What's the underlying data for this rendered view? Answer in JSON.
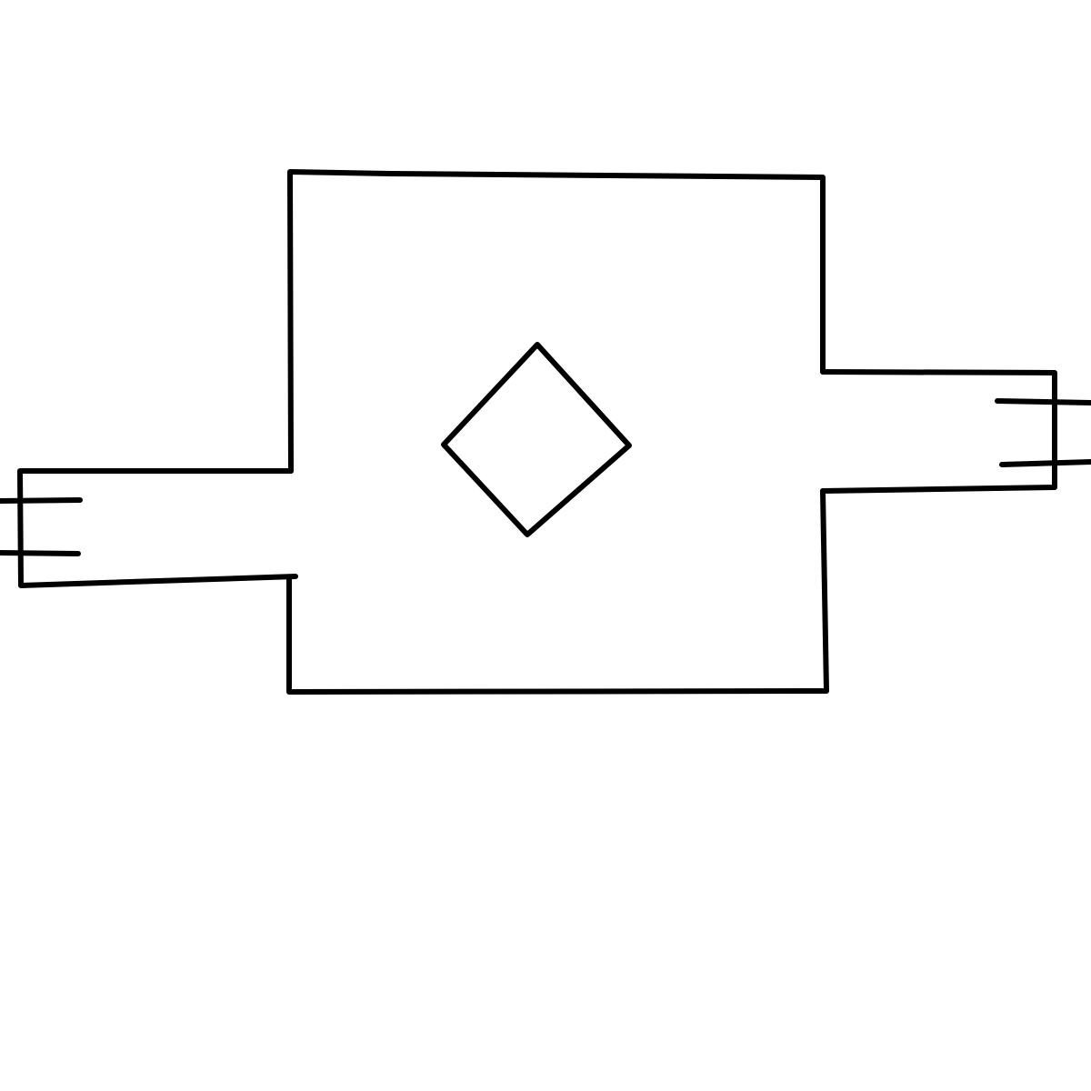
{
  "diagram": {
    "shapes": [
      "main-body-outline",
      "center-diamond",
      "left-connector-outline",
      "left-connector-prongs",
      "right-connector-outline",
      "right-connector-prongs"
    ],
    "colors": {
      "background": "#ffffff",
      "stroke": "#000000"
    }
  }
}
